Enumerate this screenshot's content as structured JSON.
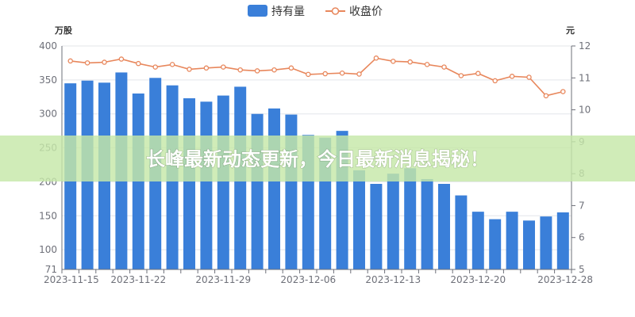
{
  "overlay": {
    "title": "长峰最新动态更新，今日最新消息揭秘！",
    "background": "rgba(198,232,168,0.82)"
  },
  "chart_data": {
    "type": "bar",
    "left_axis": {
      "unit": "万股",
      "ticks": [
        71,
        100,
        150,
        200,
        250,
        300,
        350,
        400
      ],
      "range": [
        71,
        400
      ]
    },
    "right_axis": {
      "unit": "元",
      "ticks": [
        5,
        6,
        7,
        8,
        9,
        10,
        11,
        12
      ],
      "range": [
        5,
        12
      ]
    },
    "x_tick_labels": [
      "2023-11-15",
      "2023-11-22",
      "2023-11-29",
      "2023-12-06",
      "2023-12-13",
      "2023-12-20",
      "2023-12-28"
    ],
    "x_tick_positions": [
      0,
      4,
      9,
      14,
      19,
      24,
      29
    ],
    "grid": true,
    "legend_position": "top-center",
    "series": [
      {
        "name": "持有量",
        "type": "bar",
        "axis": "left",
        "color": "#3a7fd9",
        "values": [
          345,
          349,
          346,
          361,
          330,
          353,
          342,
          323,
          318,
          327,
          340,
          300,
          308,
          299,
          269,
          265,
          275,
          217,
          197,
          212,
          220,
          204,
          197,
          180,
          156,
          145,
          156,
          143,
          149,
          155
        ]
      },
      {
        "name": "收盘价",
        "type": "line",
        "axis": "right",
        "color": "#e8875c",
        "values": [
          11.53,
          11.47,
          11.49,
          11.59,
          11.45,
          11.34,
          11.42,
          11.27,
          11.31,
          11.34,
          11.25,
          11.22,
          11.25,
          11.31,
          11.11,
          11.13,
          11.15,
          11.12,
          11.62,
          11.52,
          11.5,
          11.42,
          11.34,
          11.07,
          11.14,
          10.91,
          11.05,
          11.02,
          10.44,
          10.57
        ]
      }
    ]
  }
}
